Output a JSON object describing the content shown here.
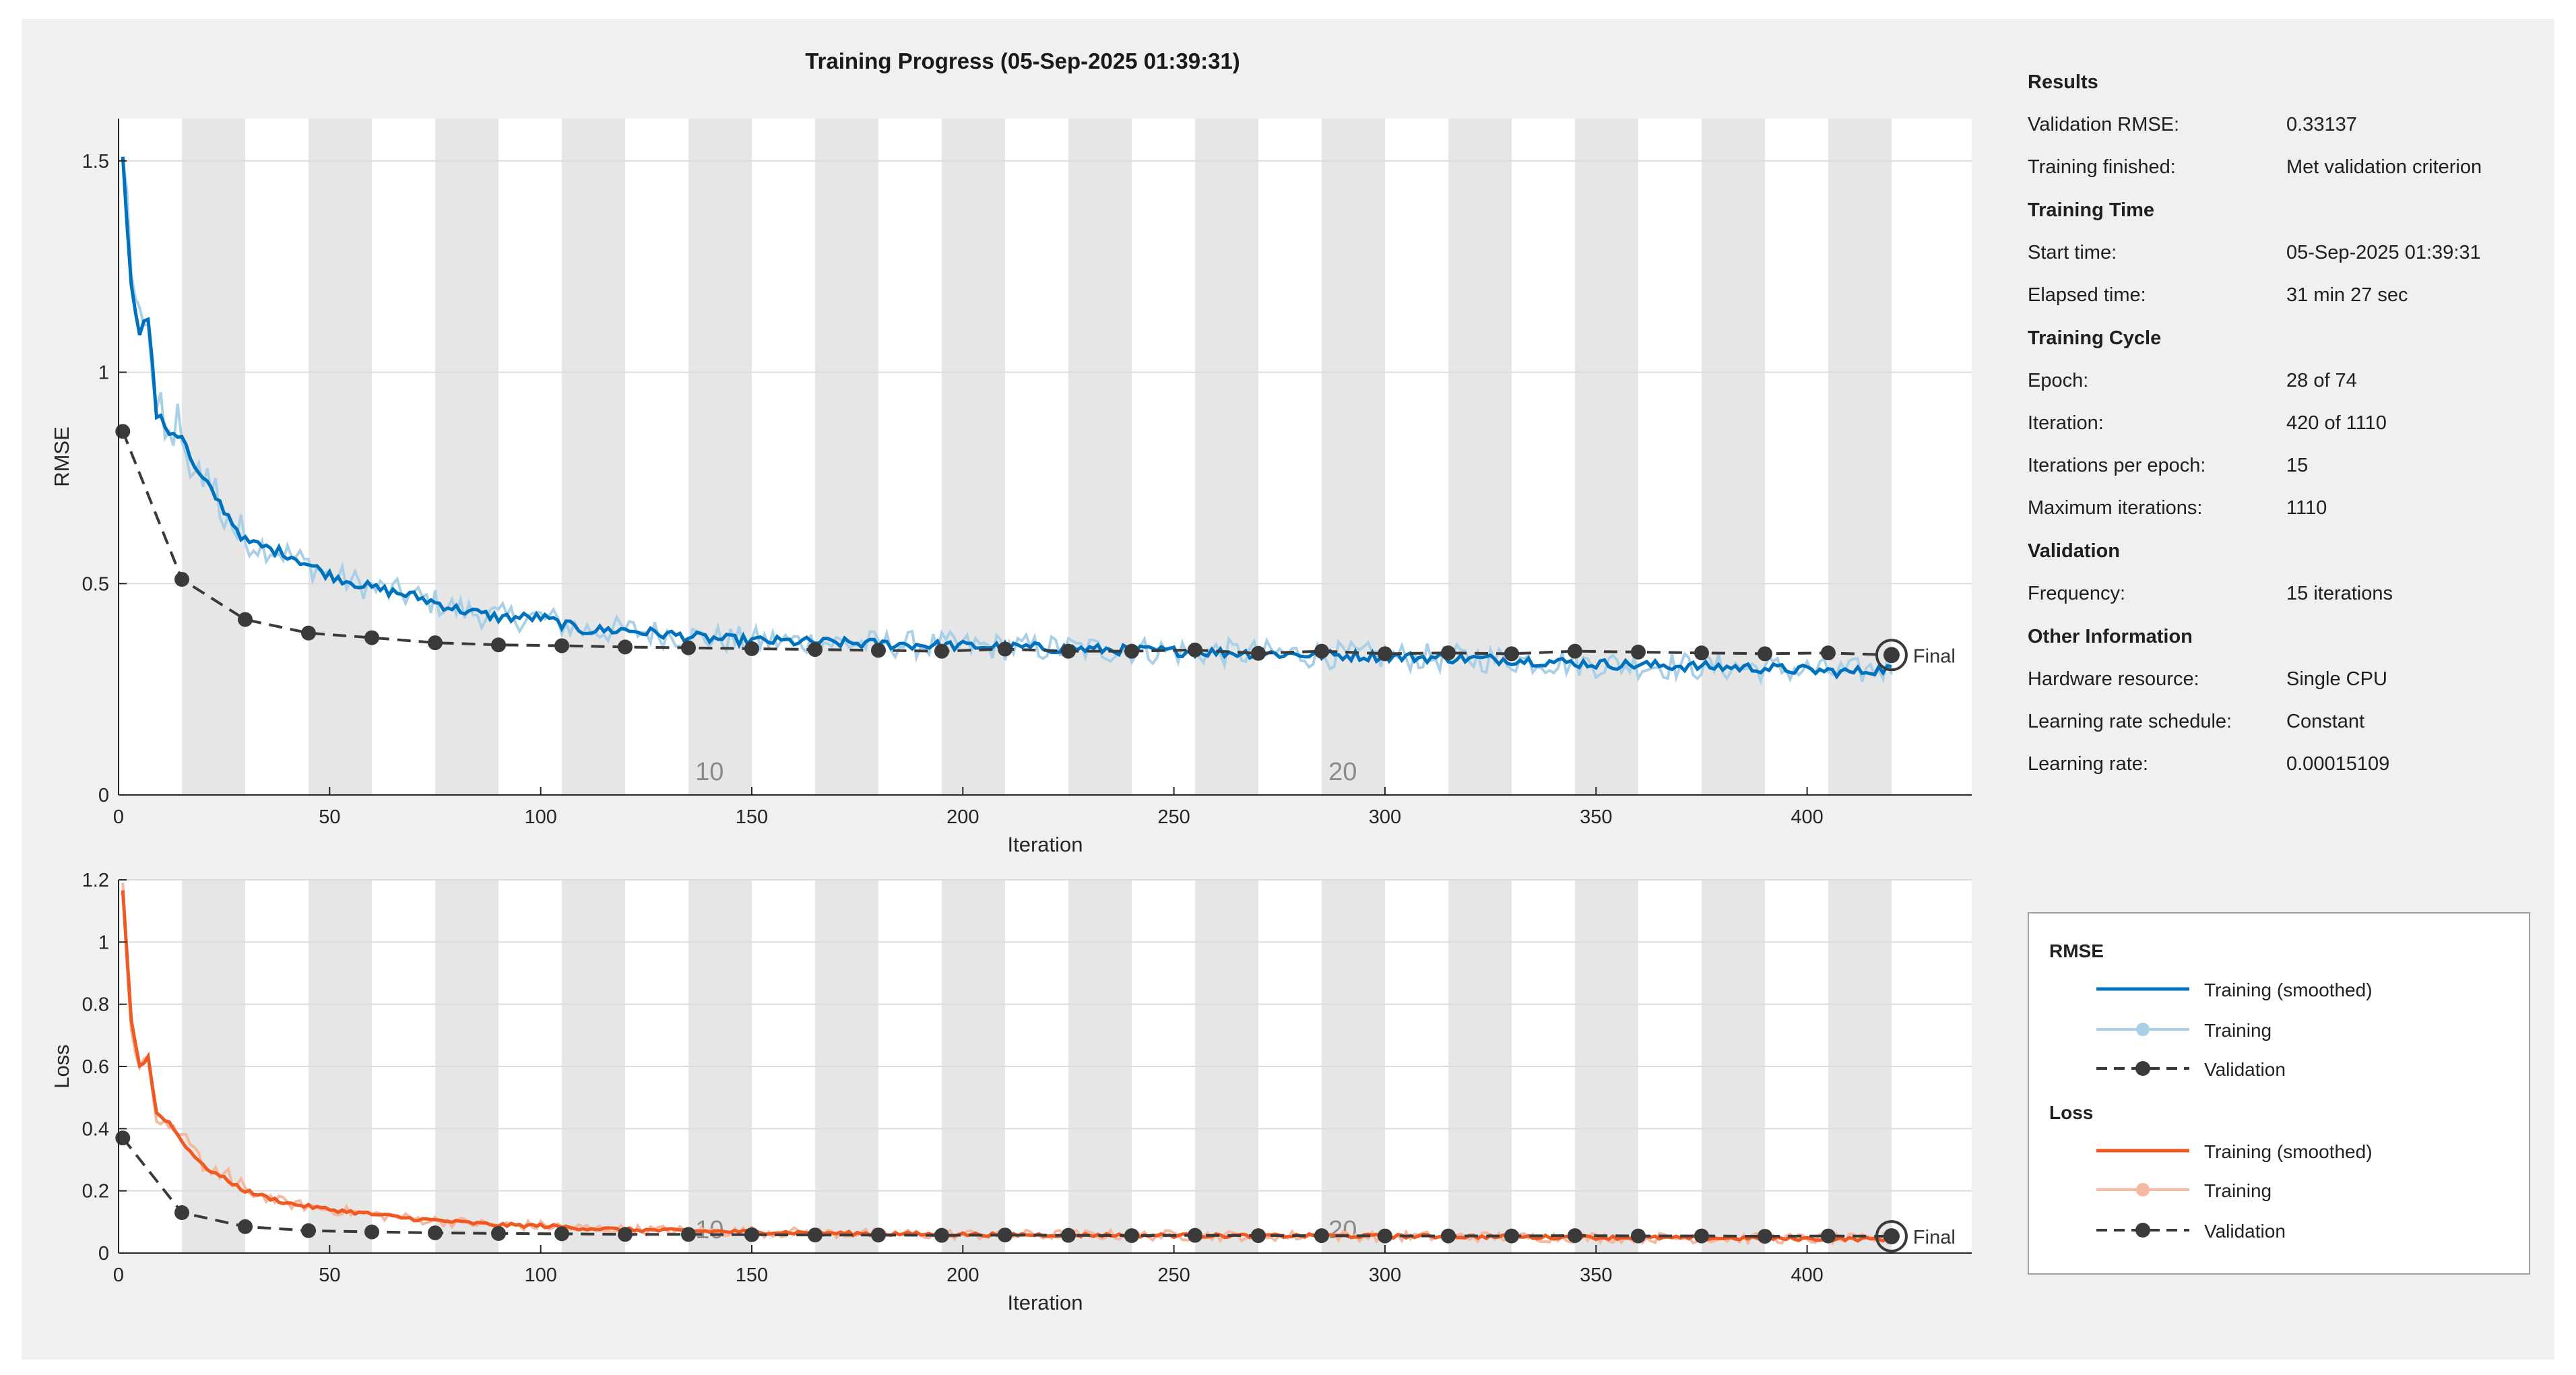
{
  "colors": {
    "rmse_smoothed": "#0072bd",
    "rmse_raw": "#a9d0e6",
    "loss_smoothed": "#f05a22",
    "loss_raw": "#f5b8a0",
    "validation": "#3a3a3a",
    "epoch_band": "#e6e6e6",
    "background": "#f0f0f0"
  },
  "chart_data": [
    {
      "type": "line",
      "title": "Training Progress (05-Sep-2025 01:39:31)",
      "xlabel": "Iteration",
      "ylabel": "RMSE",
      "xlim": [
        0,
        439
      ],
      "ylim": [
        0,
        1.6
      ],
      "xticks": [
        0,
        50,
        100,
        150,
        200,
        250,
        300,
        350,
        400
      ],
      "yticks": [
        0,
        0.5,
        1,
        1.5
      ],
      "ytick_labels": [
        "0",
        "0.5",
        "1",
        "1.5"
      ],
      "epoch_size": 15,
      "epoch_labels": [
        {
          "iteration": 140,
          "text": "10"
        },
        {
          "iteration": 290,
          "text": "20"
        }
      ],
      "final_label": "Final",
      "smoothed_key": [
        [
          1,
          1.52
        ],
        [
          3,
          1.2
        ],
        [
          5,
          1.1
        ],
        [
          7,
          1.13
        ],
        [
          9,
          0.9
        ],
        [
          12,
          0.86
        ],
        [
          15,
          0.85
        ],
        [
          18,
          0.77
        ],
        [
          22,
          0.72
        ],
        [
          26,
          0.66
        ],
        [
          30,
          0.6
        ],
        [
          40,
          0.57
        ],
        [
          50,
          0.52
        ],
        [
          60,
          0.49
        ],
        [
          70,
          0.47
        ],
        [
          80,
          0.44
        ],
        [
          90,
          0.42
        ],
        [
          100,
          0.42
        ],
        [
          110,
          0.39
        ],
        [
          120,
          0.39
        ],
        [
          130,
          0.38
        ],
        [
          140,
          0.37
        ],
        [
          150,
          0.365
        ],
        [
          170,
          0.36
        ],
        [
          190,
          0.355
        ],
        [
          210,
          0.35
        ],
        [
          230,
          0.345
        ],
        [
          250,
          0.34
        ],
        [
          270,
          0.335
        ],
        [
          290,
          0.33
        ],
        [
          310,
          0.325
        ],
        [
          330,
          0.32
        ],
        [
          350,
          0.31
        ],
        [
          370,
          0.305
        ],
        [
          390,
          0.3
        ],
        [
          400,
          0.295
        ],
        [
          410,
          0.29
        ],
        [
          420,
          0.3
        ]
      ],
      "series": [
        {
          "name": "Training (smoothed)",
          "values_ref": "smoothed_key"
        },
        {
          "name": "Training",
          "values_ref": "smoothed_key",
          "noise": 0.03
        },
        {
          "name": "Validation",
          "x": [
            1,
            15,
            30,
            45,
            60,
            75,
            90,
            105,
            120,
            135,
            150,
            165,
            180,
            195,
            210,
            225,
            240,
            255,
            270,
            285,
            300,
            315,
            330,
            345,
            360,
            375,
            390,
            405,
            420
          ],
          "values": [
            0.86,
            0.51,
            0.415,
            0.383,
            0.372,
            0.36,
            0.355,
            0.353,
            0.35,
            0.348,
            0.346,
            0.344,
            0.342,
            0.34,
            0.345,
            0.34,
            0.34,
            0.343,
            0.335,
            0.34,
            0.334,
            0.336,
            0.334,
            0.34,
            0.338,
            0.336,
            0.334,
            0.336,
            0.331
          ]
        }
      ]
    },
    {
      "type": "line",
      "title": "",
      "xlabel": "Iteration",
      "ylabel": "Loss",
      "xlim": [
        0,
        439
      ],
      "ylim": [
        0,
        1.2
      ],
      "xticks": [
        0,
        50,
        100,
        150,
        200,
        250,
        300,
        350,
        400
      ],
      "yticks": [
        0,
        0.2,
        0.4,
        0.6,
        0.8,
        1,
        1.2
      ],
      "ytick_labels": [
        "0",
        "0.2",
        "0.4",
        "0.6",
        "0.8",
        "1",
        "1.2"
      ],
      "epoch_size": 15,
      "epoch_labels": [
        {
          "iteration": 140,
          "text": "10"
        },
        {
          "iteration": 290,
          "text": "20"
        }
      ],
      "final_label": "Final",
      "smoothed_key": [
        [
          1,
          1.17
        ],
        [
          3,
          0.75
        ],
        [
          5,
          0.6
        ],
        [
          7,
          0.63
        ],
        [
          9,
          0.45
        ],
        [
          12,
          0.42
        ],
        [
          15,
          0.36
        ],
        [
          20,
          0.28
        ],
        [
          25,
          0.24
        ],
        [
          30,
          0.2
        ],
        [
          40,
          0.16
        ],
        [
          50,
          0.14
        ],
        [
          60,
          0.125
        ],
        [
          70,
          0.11
        ],
        [
          80,
          0.1
        ],
        [
          90,
          0.09
        ],
        [
          100,
          0.088
        ],
        [
          110,
          0.08
        ],
        [
          120,
          0.075
        ],
        [
          140,
          0.07
        ],
        [
          160,
          0.066
        ],
        [
          180,
          0.062
        ],
        [
          200,
          0.06
        ],
        [
          230,
          0.058
        ],
        [
          260,
          0.056
        ],
        [
          290,
          0.055
        ],
        [
          320,
          0.053
        ],
        [
          350,
          0.05
        ],
        [
          380,
          0.048
        ],
        [
          410,
          0.045
        ],
        [
          420,
          0.045
        ]
      ],
      "series": [
        {
          "name": "Training (smoothed)",
          "values_ref": "smoothed_key"
        },
        {
          "name": "Training",
          "values_ref": "smoothed_key",
          "noise": 0.015
        },
        {
          "name": "Validation",
          "x": [
            1,
            15,
            30,
            45,
            60,
            75,
            90,
            105,
            120,
            135,
            150,
            165,
            180,
            195,
            210,
            225,
            240,
            255,
            270,
            285,
            300,
            315,
            330,
            345,
            360,
            375,
            390,
            405,
            420
          ],
          "values": [
            0.37,
            0.13,
            0.085,
            0.072,
            0.068,
            0.065,
            0.063,
            0.062,
            0.06,
            0.06,
            0.059,
            0.058,
            0.058,
            0.057,
            0.058,
            0.057,
            0.056,
            0.057,
            0.056,
            0.056,
            0.055,
            0.055,
            0.055,
            0.056,
            0.055,
            0.055,
            0.054,
            0.055,
            0.054
          ]
        }
      ]
    }
  ],
  "info": {
    "results_head": "Results",
    "validation_rmse_label": "Validation RMSE:",
    "validation_rmse_value": "0.33137",
    "training_finished_label": "Training finished:",
    "training_finished_value": "Met validation criterion",
    "time_head": "Training Time",
    "start_time_label": "Start time:",
    "start_time_value": "05-Sep-2025 01:39:31",
    "elapsed_label": "Elapsed time:",
    "elapsed_value": "31 min 27 sec",
    "cycle_head": "Training Cycle",
    "epoch_label": "Epoch:",
    "epoch_value": "28 of 74",
    "iteration_label": "Iteration:",
    "iteration_value": "420 of 1110",
    "ipe_label": "Iterations per epoch:",
    "ipe_value": "15",
    "maxit_label": "Maximum iterations:",
    "maxit_value": "1110",
    "validation_head": "Validation",
    "frequency_label": "Frequency:",
    "frequency_value": "15 iterations",
    "other_head": "Other Information",
    "hardware_label": "Hardware resource:",
    "hardware_value": "Single CPU",
    "lr_schedule_label": "Learning rate schedule:",
    "lr_schedule_value": "Constant",
    "lr_label": "Learning rate:",
    "lr_value": "0.00015109"
  },
  "legend": {
    "rmse_head": "RMSE",
    "rmse_smoothed": "Training (smoothed)",
    "rmse_training": "Training",
    "rmse_validation": "Validation",
    "loss_head": "Loss",
    "loss_smoothed": "Training (smoothed)",
    "loss_training": "Training",
    "loss_validation": "Validation"
  }
}
